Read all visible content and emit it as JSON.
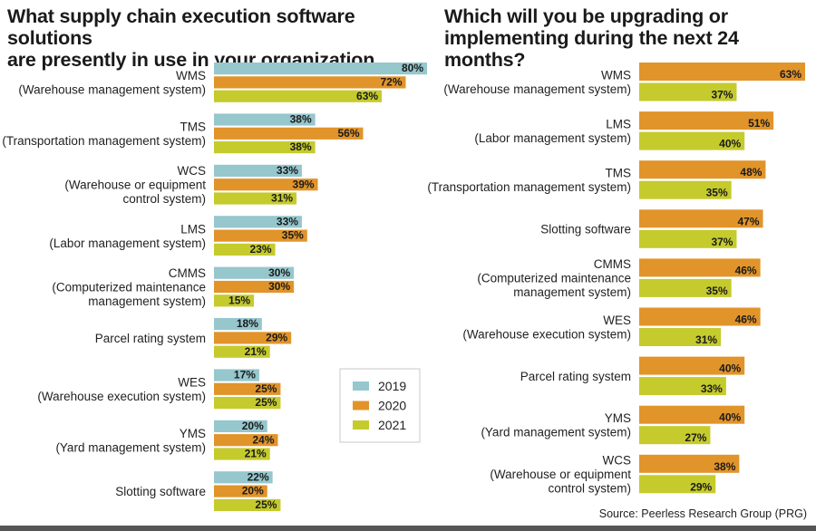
{
  "colors": {
    "2019": "#95c7cd",
    "2020": "#e1942a",
    "2021": "#c5cb2c"
  },
  "chart_data": [
    {
      "type": "bar",
      "orientation": "horizontal",
      "title": "What supply chain execution software solutions\nare presently in use in your organization",
      "xlabel": "",
      "ylabel": "",
      "xlim": [
        0,
        80
      ],
      "grid": false,
      "legend": {
        "position": "right",
        "entries": [
          "2019",
          "2020",
          "2021"
        ]
      },
      "value_format": "percent",
      "categories": [
        [
          "WMS",
          "(Warehouse management system)"
        ],
        [
          "TMS",
          "(Transportation management system)"
        ],
        [
          "WCS",
          "(Warehouse or equipment",
          "control system)"
        ],
        [
          "LMS",
          "(Labor management system)"
        ],
        [
          "CMMS",
          "(Computerized maintenance",
          "management system)"
        ],
        [
          "Parcel rating system"
        ],
        [
          "WES",
          "(Warehouse execution system)"
        ],
        [
          "YMS",
          "(Yard management system)"
        ],
        [
          "Slotting software"
        ]
      ],
      "series": [
        {
          "name": "2019",
          "values": [
            80,
            38,
            33,
            33,
            30,
            18,
            17,
            20,
            22
          ]
        },
        {
          "name": "2020",
          "values": [
            72,
            56,
            39,
            35,
            30,
            29,
            25,
            24,
            20
          ]
        },
        {
          "name": "2021",
          "values": [
            63,
            38,
            31,
            23,
            15,
            21,
            25,
            21,
            25
          ]
        }
      ]
    },
    {
      "type": "bar",
      "orientation": "horizontal",
      "title": "Which will you be upgrading or\nimplementing during the next 24 months?",
      "xlabel": "",
      "ylabel": "",
      "xlim": [
        0,
        80
      ],
      "grid": false,
      "value_format": "percent",
      "categories": [
        [
          "WMS",
          "(Warehouse management system)"
        ],
        [
          "LMS",
          "(Labor management system)"
        ],
        [
          "TMS",
          "(Transportation management system)"
        ],
        [
          "Slotting software"
        ],
        [
          "CMMS",
          "(Computerized maintenance",
          "management system)"
        ],
        [
          "WES",
          "(Warehouse execution system)"
        ],
        [
          "Parcel rating system"
        ],
        [
          "YMS",
          "(Yard management system)"
        ],
        [
          "WCS",
          "(Warehouse or equipment",
          "control system)"
        ]
      ],
      "series": [
        {
          "name": "2020",
          "values": [
            63,
            51,
            48,
            47,
            46,
            46,
            40,
            40,
            38
          ]
        },
        {
          "name": "2021",
          "values": [
            37,
            40,
            35,
            37,
            35,
            31,
            33,
            27,
            29
          ]
        }
      ]
    }
  ],
  "source": "Source: Peerless Research Group (PRG)"
}
